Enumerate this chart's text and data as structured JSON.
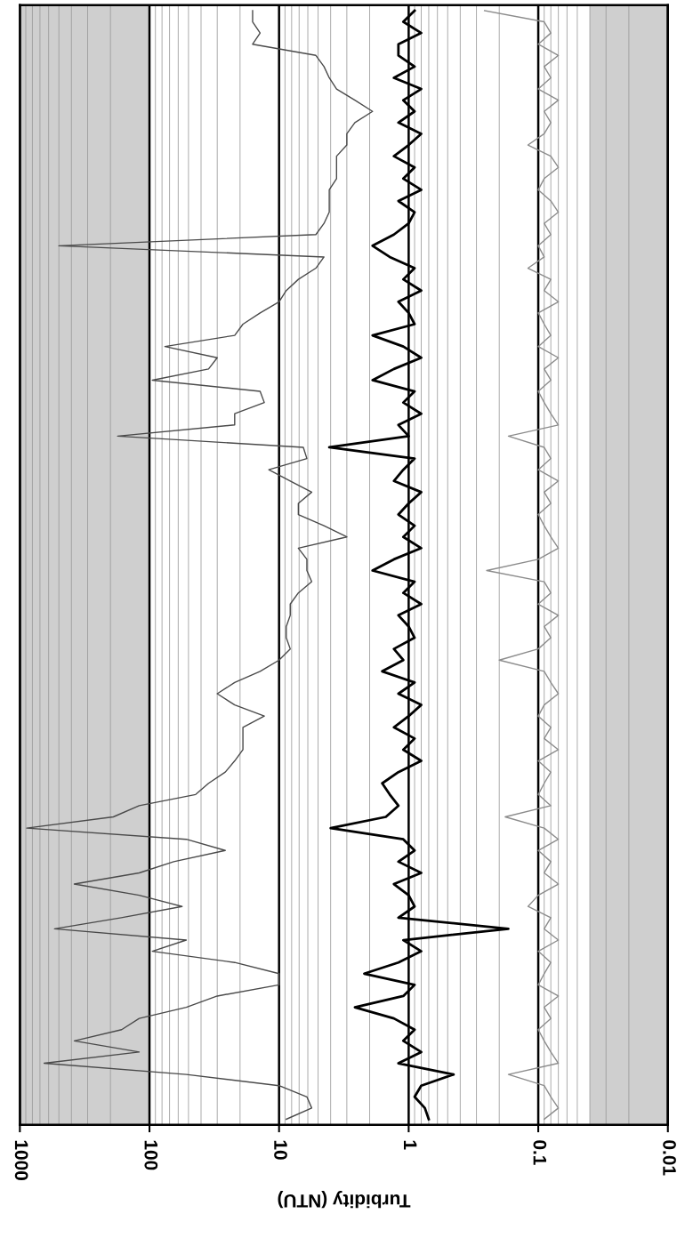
{
  "chart_data": {
    "type": "line",
    "orientation": "horizontal",
    "xlabel": "Turbidity (NTU)",
    "log": "x",
    "xlim": [
      1000,
      0.01
    ],
    "xticks": [
      {
        "value": 1000,
        "label": "1000"
      },
      {
        "value": 100,
        "label": "100"
      },
      {
        "value": 10,
        "label": "10"
      },
      {
        "value": 1,
        "label": "1"
      },
      {
        "value": 0.1,
        "label": "0.1"
      },
      {
        "value": 0.01,
        "label": "0.01"
      }
    ],
    "grid": true,
    "legend": false,
    "bands": [
      {
        "axis": "x",
        "from": 100,
        "to": 1000,
        "color": "#cfcfcf"
      },
      {
        "axis": "x",
        "from": 0.01,
        "to": 0.04,
        "color": "#cfcfcf"
      }
    ],
    "categories": [
      null,
      null,
      null,
      null,
      null,
      null,
      null,
      null,
      null,
      null,
      null,
      null,
      null,
      null,
      null,
      null,
      null,
      null,
      null,
      null,
      null,
      null,
      null,
      null,
      null,
      null,
      null,
      null,
      null,
      null,
      null,
      null,
      null,
      null,
      null,
      null,
      null,
      null,
      null,
      null,
      null,
      null,
      null,
      null,
      null,
      null,
      null,
      null,
      null,
      null,
      null,
      null,
      null,
      null,
      null,
      null,
      null,
      null,
      null,
      null,
      null,
      null,
      null,
      null,
      null,
      null,
      null,
      null,
      null,
      null,
      null,
      null,
      null,
      null,
      null,
      null,
      null,
      null,
      null,
      null,
      null,
      null,
      null,
      null,
      null,
      null,
      null,
      null,
      null,
      null,
      null,
      null,
      null,
      null,
      null,
      null,
      null,
      null,
      null,
      null
    ],
    "series": [
      {
        "color": "#4a4a4a",
        "values": [
          16,
          16,
          14,
          16,
          5.2,
          4.5,
          4.1,
          3.6,
          2.6,
          1.9,
          2.6,
          3.0,
          3.0,
          3.6,
          3.6,
          3.6,
          4.1,
          4.1,
          4.1,
          4.5,
          5.2,
          500,
          4.5,
          5.2,
          7.1,
          8.8,
          10,
          14,
          19,
          22,
          76,
          30,
          35,
          95,
          14,
          13,
          22,
          22,
          176,
          6.5,
          6.1,
          12,
          8.2,
          5.6,
          7.1,
          7.1,
          4.5,
          3.0,
          7.1,
          6.1,
          6.1,
          5.6,
          7.1,
          8.2,
          8.2,
          8.8,
          8.8,
          8.2,
          10,
          14,
          22,
          30,
          22,
          13,
          19,
          19,
          19,
          22,
          26,
          35,
          44,
          120,
          190,
          885,
          52,
          26,
          65,
          120,
          380,
          120,
          56,
          165,
          540,
          52,
          95,
          22,
          10,
          10,
          30,
          52,
          120,
          164,
          380,
          120,
          650,
          52,
          10,
          6.1,
          5.6,
          8.8
        ]
      },
      {
        "color": "#000000",
        "values": [
          0.9,
          1.1,
          0.8,
          1.2,
          1.2,
          0.9,
          1.3,
          0.8,
          1.1,
          0.9,
          1.2,
          0.8,
          1.0,
          1.3,
          0.9,
          1.1,
          0.8,
          1.2,
          0.9,
          1.0,
          1.3,
          1.9,
          1.4,
          0.9,
          1.1,
          0.8,
          1.2,
          1.0,
          0.9,
          1.9,
          1.1,
          0.8,
          1.3,
          1.9,
          0.9,
          1.1,
          0.8,
          1.2,
          1.0,
          4.1,
          0.9,
          1.1,
          1.3,
          0.8,
          1.0,
          1.2,
          0.9,
          1.1,
          0.8,
          1.3,
          1.9,
          0.9,
          1.1,
          0.8,
          1.2,
          1.0,
          0.9,
          1.3,
          1.1,
          1.6,
          0.9,
          1.2,
          0.8,
          1.0,
          1.3,
          0.9,
          1.1,
          0.8,
          1.2,
          1.6,
          1.4,
          1.2,
          1.5,
          4.0,
          1.1,
          0.9,
          1.2,
          0.8,
          1.3,
          1.0,
          0.9,
          1.2,
          0.17,
          1.1,
          0.8,
          1.2,
          2.2,
          0.9,
          1.1,
          2.6,
          1.3,
          0.9,
          1.1,
          0.8,
          1.2,
          0.45,
          0.8,
          0.9,
          0.75,
          0.7
        ]
      },
      {
        "color": "#8c8c8c",
        "values": [
          0.26,
          0.09,
          0.08,
          0.1,
          0.07,
          0.09,
          0.08,
          0.1,
          0.07,
          0.09,
          0.08,
          0.09,
          0.12,
          0.08,
          0.07,
          0.09,
          0.1,
          0.08,
          0.07,
          0.09,
          0.08,
          0.1,
          0.09,
          0.12,
          0.08,
          0.09,
          0.07,
          0.1,
          0.09,
          0.08,
          0.1,
          0.07,
          0.09,
          0.08,
          0.1,
          0.09,
          0.08,
          0.07,
          0.17,
          0.09,
          0.08,
          0.1,
          0.07,
          0.09,
          0.08,
          0.1,
          0.09,
          0.08,
          0.07,
          0.1,
          0.25,
          0.09,
          0.08,
          0.1,
          0.07,
          0.09,
          0.08,
          0.1,
          0.2,
          0.09,
          0.08,
          0.07,
          0.09,
          0.1,
          0.08,
          0.09,
          0.07,
          0.1,
          0.08,
          0.09,
          0.1,
          0.08,
          0.18,
          0.09,
          0.07,
          0.1,
          0.08,
          0.09,
          0.07,
          0.1,
          0.12,
          0.08,
          0.09,
          0.07,
          0.1,
          0.08,
          0.09,
          0.1,
          0.07,
          0.09,
          0.08,
          0.1,
          0.09,
          0.08,
          0.07,
          0.17,
          0.09,
          0.08,
          0.07,
          0.09
        ]
      }
    ]
  }
}
